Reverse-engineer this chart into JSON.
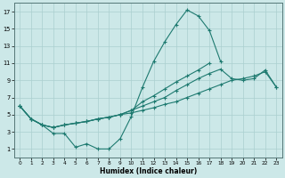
{
  "xlabel": "Humidex (Indice chaleur)",
  "bg_color": "#cce8e8",
  "grid_color": "#aacfcf",
  "line_color": "#1e7a70",
  "xlim": [
    -0.5,
    23.5
  ],
  "ylim": [
    0,
    18
  ],
  "xticks": [
    0,
    1,
    2,
    3,
    4,
    5,
    6,
    7,
    8,
    9,
    10,
    11,
    12,
    13,
    14,
    15,
    16,
    17,
    18,
    19,
    20,
    21,
    22,
    23
  ],
  "yticks": [
    1,
    3,
    5,
    7,
    9,
    11,
    13,
    15,
    17
  ],
  "line1_y": [
    6.0,
    4.5,
    3.8,
    2.8,
    2.8,
    1.2,
    1.6,
    1.0,
    1.0,
    2.2,
    4.8,
    8.2,
    11.2,
    13.5,
    15.5,
    17.2,
    16.5,
    14.8,
    11.2,
    null,
    null,
    null,
    null,
    null
  ],
  "line2_y": [
    6.0,
    4.5,
    3.8,
    3.5,
    3.8,
    4.0,
    4.2,
    4.5,
    4.7,
    5.0,
    5.2,
    5.5,
    5.8,
    6.2,
    6.5,
    7.0,
    7.5,
    8.0,
    8.5,
    9.0,
    9.2,
    9.5,
    10.0,
    8.2
  ],
  "line3_y": [
    6.0,
    4.5,
    3.8,
    3.5,
    3.8,
    4.0,
    4.2,
    4.5,
    4.7,
    5.0,
    5.5,
    6.0,
    6.5,
    7.0,
    7.8,
    8.5,
    9.2,
    9.8,
    10.3,
    9.2,
    9.0,
    9.2,
    10.2,
    8.2
  ],
  "line4_y": [
    6.0,
    4.5,
    3.8,
    3.5,
    3.8,
    4.0,
    4.2,
    4.5,
    4.7,
    5.0,
    5.5,
    6.5,
    7.2,
    8.0,
    8.8,
    9.5,
    10.2,
    11.0,
    null,
    null,
    null,
    null,
    null,
    null
  ]
}
